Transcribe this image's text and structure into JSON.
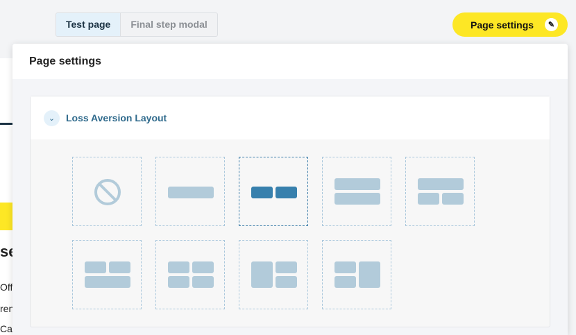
{
  "tabs": [
    {
      "label": "Test page",
      "active": true
    },
    {
      "label": "Final step modal",
      "active": false
    }
  ],
  "page_settings_button": {
    "label": "Page settings",
    "icon": "pencil-icon"
  },
  "background_fragments": {
    "title": "se",
    "lines": [
      "Offe",
      "ren",
      "Can"
    ]
  },
  "modal": {
    "title": "Page settings",
    "section": {
      "title": "Loss Aversion Layout",
      "expanded": true,
      "toggle_icon": "chevron-down-icon",
      "layouts": [
        {
          "name": "none",
          "selected": false
        },
        {
          "name": "single",
          "selected": false
        },
        {
          "name": "two-columns",
          "selected": true
        },
        {
          "name": "two-rows",
          "selected": false
        },
        {
          "name": "top-full-bottom-split",
          "selected": false
        },
        {
          "name": "top-split-bottom-full",
          "selected": false
        },
        {
          "name": "grid-2x2",
          "selected": false
        },
        {
          "name": "left-tall-right-split",
          "selected": false
        },
        {
          "name": "left-split-right-tall",
          "selected": false
        }
      ]
    }
  },
  "colors": {
    "accent_yellow": "#fde725",
    "selected_blue": "#3780ad",
    "option_blue": "#b2cbda"
  }
}
